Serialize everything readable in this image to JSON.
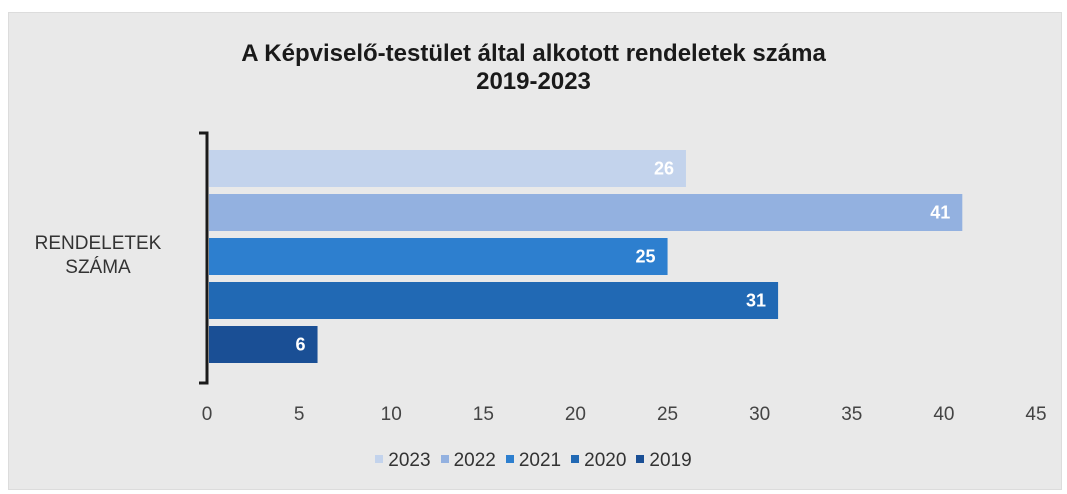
{
  "chart_data": {
    "type": "bar",
    "orientation": "horizontal",
    "title": "A Képviselő-testület által alkotott rendeletek száma",
    "subtitle": "2019-2023",
    "category_label_lines": [
      "RENDELETEK",
      "SZÁMA"
    ],
    "categories": [
      "RENDELETEK SZÁMA"
    ],
    "series": [
      {
        "name": "2023",
        "values": [
          26
        ],
        "color": "#c3d3ec"
      },
      {
        "name": "2022",
        "values": [
          41
        ],
        "color": "#93b1e0"
      },
      {
        "name": "2021",
        "values": [
          25
        ],
        "color": "#2d7fcf"
      },
      {
        "name": "2020",
        "values": [
          31
        ],
        "color": "#2169b4"
      },
      {
        "name": "2019",
        "values": [
          6
        ],
        "color": "#1a4f95"
      }
    ],
    "xlim": [
      0,
      45
    ],
    "xticks": [
      0,
      5,
      10,
      15,
      20,
      25,
      30,
      35,
      40,
      45
    ],
    "grid": false,
    "legend_position": "bottom",
    "data_labels": true
  }
}
